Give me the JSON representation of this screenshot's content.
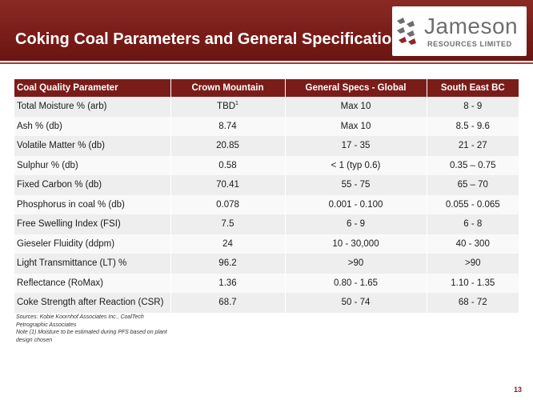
{
  "slide": {
    "title": "Coking Coal Parameters and General Specifications",
    "page_number": "13"
  },
  "logo": {
    "name": "Jameson",
    "subtitle": "RESOURCES LIMITED",
    "icon": "jameson-arrows-icon"
  },
  "table": {
    "headers": [
      "Coal Quality Parameter",
      "Crown Mountain",
      "General Specs - Global",
      "South East BC"
    ],
    "rows": [
      {
        "param": "Total Moisture  % (arb)",
        "crown": "TBD",
        "crown_note": "1",
        "global": "Max  10",
        "sebc": "8 - 9"
      },
      {
        "param": "Ash  % (db)",
        "crown": "8.74",
        "global": "Max  10",
        "sebc": "8.5 - 9.6"
      },
      {
        "param": "Volatile Matter  % (db)",
        "crown": "20.85",
        "global": "17 - 35",
        "sebc": "21 - 27"
      },
      {
        "param": "Sulphur  % (db)",
        "crown": "0.58",
        "global": "< 1  (typ 0.6)",
        "sebc": "0.35 – 0.75"
      },
      {
        "param": "Fixed Carbon  % (db)",
        "crown": "70.41",
        "global": "55 - 75",
        "sebc": "65 – 70"
      },
      {
        "param": "Phosphorus in coal  % (db)",
        "crown": "0.078",
        "global": "0.001 -  0.100",
        "sebc": "0.055 -  0.065"
      },
      {
        "param": "Free Swelling Index (FSI)",
        "crown": "7.5",
        "global": "6 - 9",
        "sebc": "6 - 8"
      },
      {
        "param": "Gieseler Fluidity  (ddpm)",
        "crown": "24",
        "global": "10 - 30,000",
        "sebc": "40 - 300"
      },
      {
        "param": "Light Transmittance (LT)  %",
        "crown": "96.2",
        "global": ">90",
        "sebc": ">90"
      },
      {
        "param": "Reflectance (RoMax)",
        "crown": "1.36",
        "global": "0.80  - 1.65",
        "sebc": "1.10  - 1.35"
      },
      {
        "param": "Coke Strength after Reaction (CSR)",
        "crown": "68.7",
        "global": "50 - 74",
        "sebc": "68 - 72"
      }
    ]
  },
  "notes": {
    "sources": "Sources:  Kobie Koornhof Associates Inc.,  CoalTech Petrographic Associates",
    "note1": "Note (1) Moisture to be estimated during PFS based on plant design chosen"
  },
  "colors": {
    "brand_red": "#7a1d19",
    "logo_gray": "#6e6e6e",
    "logo_accent": "#8a2a25"
  }
}
